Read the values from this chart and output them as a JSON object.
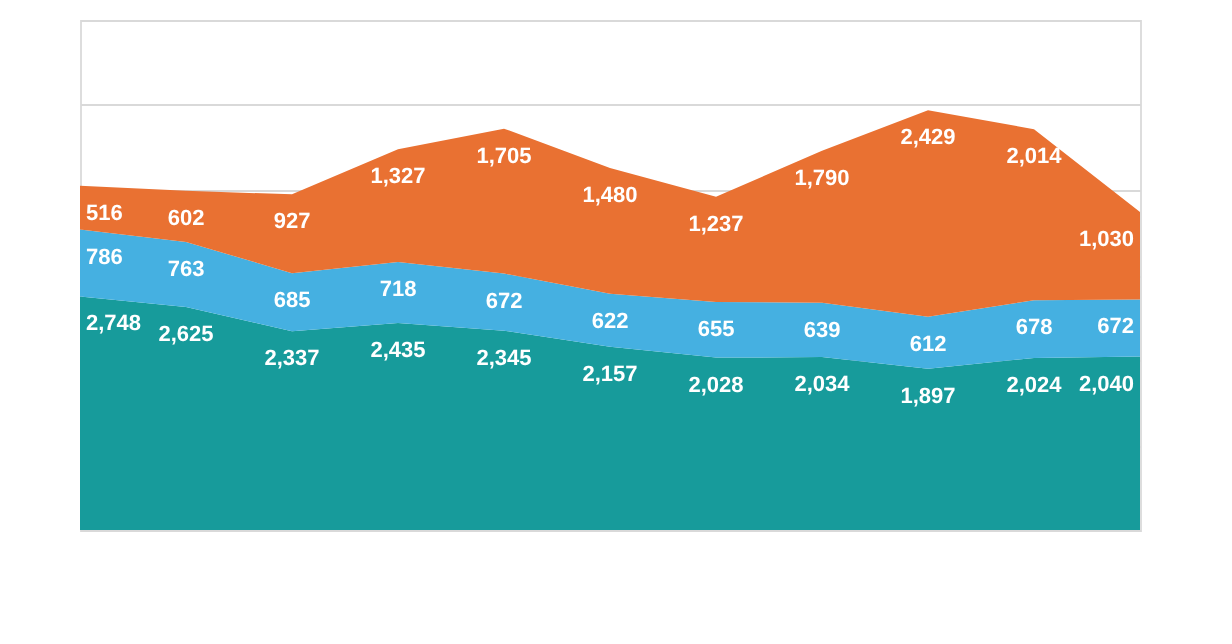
{
  "chart_data": {
    "type": "area",
    "stacked": true,
    "categories": [
      null,
      null,
      null,
      null,
      null,
      null,
      null,
      null,
      null,
      null,
      null
    ],
    "series": [
      {
        "color": "#179b9b",
        "values": [
          2748,
          2625,
          2337,
          2435,
          2345,
          2157,
          2028,
          2034,
          1897,
          2024,
          2040
        ],
        "value_labels": [
          "2,748",
          "2,625",
          "2,337",
          "2,435",
          "2,345",
          "2,157",
          "2,028",
          "2,034",
          "1,897",
          "2,024",
          "2,040"
        ]
      },
      {
        "color": "#45b0e1",
        "values": [
          786,
          763,
          685,
          718,
          672,
          622,
          655,
          639,
          612,
          678,
          672
        ],
        "value_labels": [
          "786",
          "763",
          "685",
          "718",
          "672",
          "622",
          "655",
          "639",
          "612",
          "678",
          "672"
        ]
      },
      {
        "color": "#e97132",
        "values": [
          516,
          602,
          927,
          1327,
          1705,
          1480,
          1237,
          1790,
          2429,
          2014,
          1030
        ],
        "value_labels": [
          "516",
          "602",
          "927",
          "1,327",
          "1,705",
          "1,480",
          "1,237",
          "1,790",
          "2,429",
          "2,014",
          "1,030"
        ]
      }
    ],
    "ylim": [
      0,
      6000
    ],
    "tick_labels": false,
    "grid": "y"
  }
}
